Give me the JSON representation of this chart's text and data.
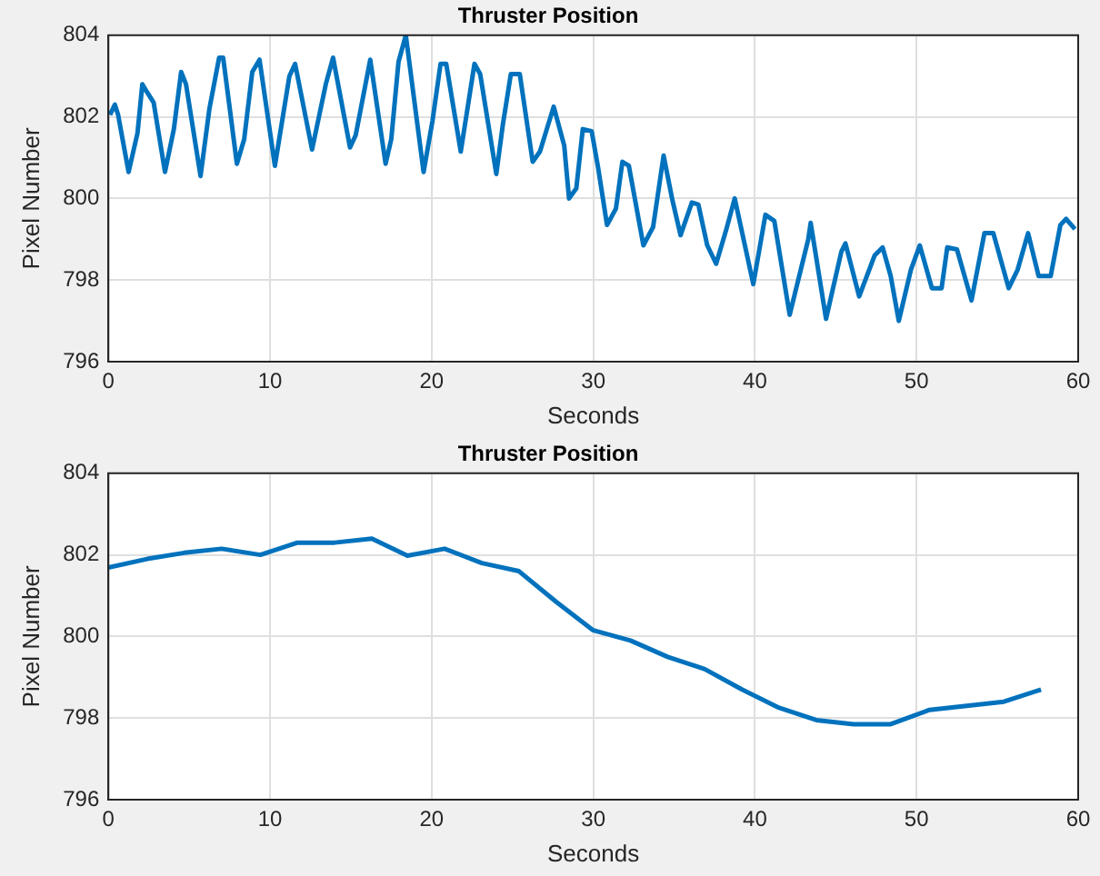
{
  "chart_data": [
    {
      "type": "line",
      "title": "Thruster Position",
      "xlabel": "Seconds",
      "ylabel": "Pixel Number",
      "xlim": [
        0,
        60
      ],
      "ylim": [
        796,
        804
      ],
      "xticks": [
        0,
        10,
        20,
        30,
        40,
        50,
        60
      ],
      "yticks": [
        796,
        798,
        800,
        802,
        804
      ],
      "grid": true,
      "x": [
        0.1,
        0.4,
        0.6,
        0.9,
        1.25,
        1.8,
        2.1,
        2.4,
        2.8,
        3.5,
        4.05,
        4.5,
        4.8,
        5.7,
        6.25,
        6.85,
        7.1,
        7.95,
        8.4,
        8.9,
        9.35,
        10.3,
        11.2,
        11.55,
        12.1,
        12.6,
        13.45,
        13.9,
        14.95,
        15.3,
        16.2,
        17.15,
        17.5,
        17.95,
        18.4,
        19.5,
        20.05,
        20.55,
        20.9,
        21.8,
        22.65,
        23.0,
        24.0,
        24.4,
        24.9,
        25.45,
        26.25,
        26.7,
        27.55,
        28.2,
        28.5,
        28.95,
        29.35,
        29.9,
        30.3,
        30.85,
        31.4,
        31.8,
        32.2,
        33.1,
        33.7,
        34.35,
        34.9,
        35.4,
        36.1,
        36.5,
        37.05,
        37.6,
        38.2,
        38.75,
        39.9,
        40.65,
        41.2,
        42.15,
        43.3,
        43.45,
        44.4,
        45.35,
        45.6,
        46.45,
        47.4,
        47.9,
        48.4,
        48.9,
        49.65,
        50.2,
        50.95,
        51.55,
        51.9,
        52.5,
        53.4,
        54.2,
        54.75,
        55.7,
        56.25,
        56.9,
        57.55,
        58.3,
        58.9,
        59.25,
        59.8
      ],
      "series": [
        {
          "color": "#0072bd",
          "values": [
            802.05,
            802.3,
            802.05,
            801.4,
            800.65,
            801.6,
            802.8,
            802.6,
            802.35,
            800.65,
            801.7,
            803.1,
            802.8,
            800.55,
            802.2,
            803.45,
            803.45,
            800.85,
            801.45,
            803.1,
            803.4,
            800.8,
            803.0,
            803.3,
            802.2,
            801.2,
            802.8,
            803.45,
            801.25,
            801.55,
            803.4,
            800.85,
            801.45,
            803.35,
            804.0,
            800.65,
            801.9,
            803.3,
            803.3,
            801.15,
            803.3,
            803.05,
            800.6,
            801.8,
            803.05,
            803.05,
            800.9,
            801.15,
            802.25,
            801.3,
            800.0,
            800.25,
            801.7,
            801.65,
            800.75,
            799.35,
            799.75,
            800.9,
            800.8,
            798.85,
            799.3,
            801.05,
            799.95,
            799.1,
            799.9,
            799.85,
            798.85,
            798.4,
            799.2,
            800.0,
            797.9,
            799.6,
            799.45,
            797.15,
            799.0,
            799.4,
            797.05,
            798.7,
            798.9,
            797.6,
            798.6,
            798.8,
            798.1,
            797.0,
            798.25,
            798.85,
            797.8,
            797.8,
            798.8,
            798.75,
            797.5,
            799.15,
            799.15,
            797.8,
            798.25,
            799.15,
            798.1,
            798.1,
            799.35,
            799.5,
            799.25
          ]
        }
      ]
    },
    {
      "type": "line",
      "title": "Thruster Position",
      "xlabel": "Seconds",
      "ylabel": "Pixel Number",
      "xlim": [
        0,
        60
      ],
      "ylim": [
        796,
        804
      ],
      "xticks": [
        0,
        10,
        20,
        30,
        40,
        50,
        60
      ],
      "yticks": [
        796,
        798,
        800,
        802,
        804
      ],
      "grid": true,
      "x": [
        0,
        2.4,
        4.7,
        7.0,
        9.4,
        11.7,
        14.0,
        16.3,
        18.5,
        20.8,
        23.1,
        25.4,
        27.7,
        30.0,
        32.3,
        34.6,
        36.9,
        39.2,
        41.5,
        43.8,
        46.1,
        48.4,
        50.8,
        53.1,
        55.4,
        57.7
      ],
      "series": [
        {
          "color": "#0072bd",
          "values": [
            801.69,
            801.9,
            802.05,
            802.15,
            802.0,
            802.3,
            802.3,
            802.4,
            801.98,
            802.15,
            801.8,
            801.6,
            800.85,
            800.15,
            799.9,
            799.5,
            799.2,
            798.7,
            798.25,
            797.95,
            797.85,
            797.85,
            798.2,
            798.3,
            798.4,
            798.7
          ]
        }
      ]
    }
  ]
}
